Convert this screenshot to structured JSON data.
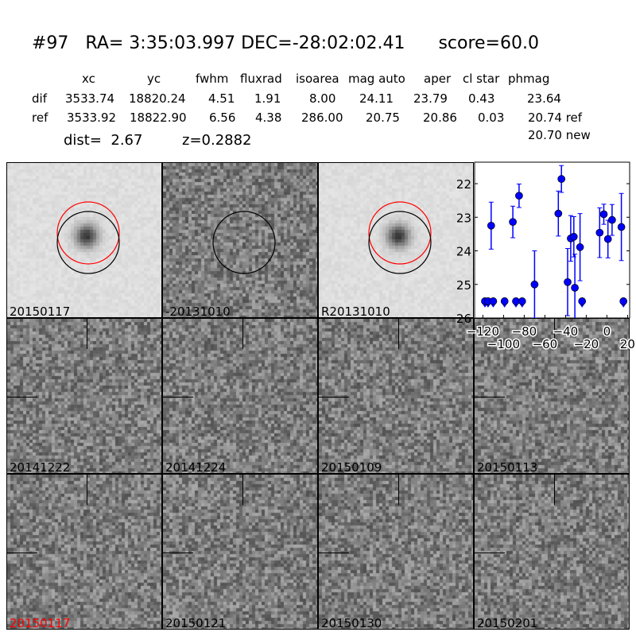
{
  "title": {
    "id": "#97",
    "ra": "RA= 3:35:03.997",
    "dec": "DEC=-28:02:02.41",
    "score": "score=60.0"
  },
  "table": {
    "headers": [
      "xc",
      "yc",
      "fwhm",
      "fluxrad",
      "isoarea",
      "mag auto",
      "aper",
      "cl star",
      "phmag"
    ],
    "rows": [
      {
        "label": "dif",
        "values": [
          "3533.74",
          "18820.24",
          "4.51",
          "1.91",
          "8.00",
          "24.11",
          "23.79",
          "0.43",
          "23.64"
        ]
      },
      {
        "label": "ref",
        "values": [
          "3533.92",
          "18822.90",
          "6.56",
          "4.38",
          "286.00",
          "20.75",
          "20.86",
          "0.03",
          "20.74 ref"
        ]
      }
    ],
    "extra_phmag": "20.70 new",
    "dist": "dist=  2.67",
    "z": "z=0.2882"
  },
  "stamps": [
    {
      "label": "20150117",
      "circles": [
        "red",
        "black"
      ]
    },
    {
      "label": "-20131010",
      "circles": [
        "black"
      ]
    },
    {
      "label": "R20131010",
      "circles": [
        "red",
        "black"
      ]
    },
    {
      "label": "20141222",
      "crosshair": true
    },
    {
      "label": "20141224",
      "crosshair": true
    },
    {
      "label": "20150109",
      "crosshair": true
    },
    {
      "label": "20150113",
      "crosshair": true
    },
    {
      "label": "20150117",
      "crosshair": true,
      "label_color": "#ff0000"
    },
    {
      "label": "20150121",
      "crosshair": true
    },
    {
      "label": "20150130",
      "crosshair": true
    },
    {
      "label": "20150201",
      "crosshair": true
    }
  ],
  "chart_data": {
    "type": "scatter",
    "xlim": [
      -128,
      22
    ],
    "ylim": [
      26,
      21.36
    ],
    "y_inverted": true,
    "xticks": [
      -120,
      -100,
      -80,
      -60,
      -40,
      -20,
      0,
      20
    ],
    "yticks": [
      22,
      23,
      24,
      25,
      26
    ],
    "color": "#0000ff",
    "detections": [
      {
        "x": -112,
        "y": 23.25,
        "err": 0.7
      },
      {
        "x": -91,
        "y": 23.14,
        "err": 0.47
      },
      {
        "x": -85,
        "y": 22.36,
        "err": 0.35
      },
      {
        "x": -70,
        "y": 25.0,
        "err": 1.0
      },
      {
        "x": -47,
        "y": 22.89,
        "err": 0.67
      },
      {
        "x": -44,
        "y": 21.86,
        "err": 0.4
      },
      {
        "x": -38,
        "y": 24.93,
        "err": 1.0
      },
      {
        "x": -35,
        "y": 23.63,
        "err": 0.68
      },
      {
        "x": -32,
        "y": 23.58,
        "err": 0.6
      },
      {
        "x": -31,
        "y": 25.1,
        "err": 1.0
      },
      {
        "x": -26,
        "y": 23.89,
        "err": 1.0
      },
      {
        "x": -7,
        "y": 23.46,
        "err": 0.74
      },
      {
        "x": -3,
        "y": 22.91,
        "err": 0.3
      },
      {
        "x": 1,
        "y": 23.65,
        "err": 0.56
      },
      {
        "x": 5,
        "y": 23.08,
        "err": 0.46
      },
      {
        "x": 14,
        "y": 23.29,
        "err": 1.0
      }
    ],
    "upper_limits": [
      {
        "x": -118,
        "y": 25.5
      },
      {
        "x": -115,
        "y": 25.5
      },
      {
        "x": -110,
        "y": 25.5
      },
      {
        "x": -99,
        "y": 25.5
      },
      {
        "x": -88,
        "y": 25.5
      },
      {
        "x": -82,
        "y": 25.5
      },
      {
        "x": -24,
        "y": 25.5
      },
      {
        "x": 16,
        "y": 25.5
      }
    ]
  }
}
